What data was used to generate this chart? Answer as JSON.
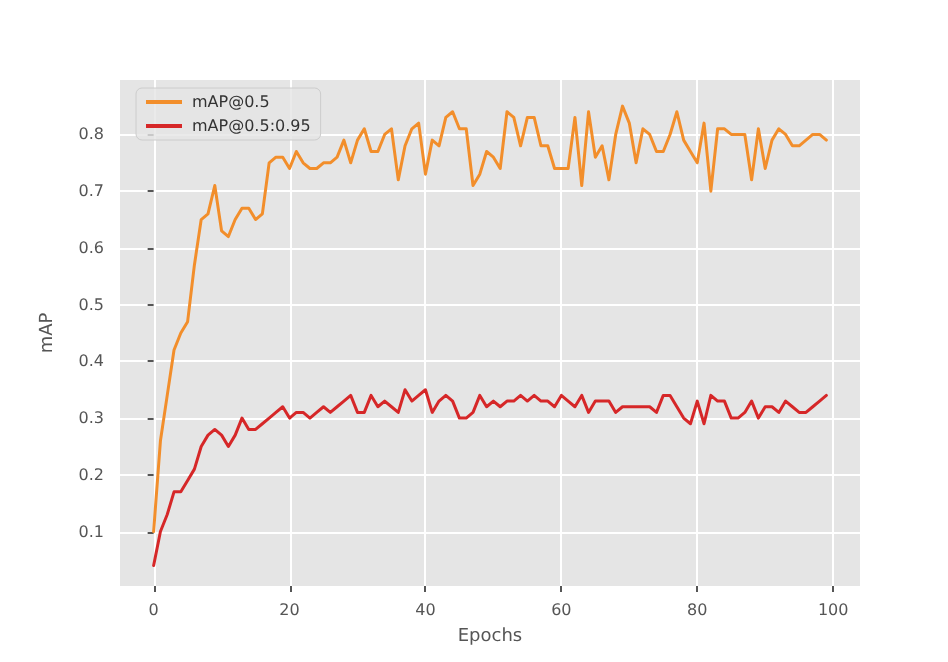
{
  "chart_data": {
    "type": "line",
    "xlabel": "Epochs",
    "ylabel": "mAP",
    "x": [
      0,
      1,
      2,
      3,
      4,
      5,
      6,
      7,
      8,
      9,
      10,
      11,
      12,
      13,
      14,
      15,
      16,
      17,
      18,
      19,
      20,
      21,
      22,
      23,
      24,
      25,
      26,
      27,
      28,
      29,
      30,
      31,
      32,
      33,
      34,
      35,
      36,
      37,
      38,
      39,
      40,
      41,
      42,
      43,
      44,
      45,
      46,
      47,
      48,
      49,
      50,
      51,
      52,
      53,
      54,
      55,
      56,
      57,
      58,
      59,
      60,
      61,
      62,
      63,
      64,
      65,
      66,
      67,
      68,
      69,
      70,
      71,
      72,
      73,
      74,
      75,
      76,
      77,
      78,
      79,
      80,
      81,
      82,
      83,
      84,
      85,
      86,
      87,
      88,
      89,
      90,
      91,
      92,
      93,
      94,
      95,
      96,
      97,
      98,
      99
    ],
    "series": [
      {
        "name": "mAP@0.5",
        "color": "#f28e2b",
        "values": [
          0.1,
          0.26,
          0.34,
          0.42,
          0.45,
          0.47,
          0.57,
          0.65,
          0.66,
          0.71,
          0.63,
          0.62,
          0.65,
          0.67,
          0.67,
          0.65,
          0.66,
          0.75,
          0.76,
          0.76,
          0.74,
          0.77,
          0.75,
          0.74,
          0.74,
          0.75,
          0.75,
          0.76,
          0.79,
          0.75,
          0.79,
          0.81,
          0.77,
          0.77,
          0.8,
          0.81,
          0.72,
          0.78,
          0.81,
          0.82,
          0.73,
          0.79,
          0.78,
          0.83,
          0.84,
          0.81,
          0.81,
          0.71,
          0.73,
          0.77,
          0.76,
          0.74,
          0.84,
          0.83,
          0.78,
          0.83,
          0.83,
          0.78,
          0.78,
          0.74,
          0.74,
          0.74,
          0.83,
          0.71,
          0.84,
          0.76,
          0.78,
          0.72,
          0.8,
          0.85,
          0.82,
          0.75,
          0.81,
          0.8,
          0.77,
          0.77,
          0.8,
          0.84,
          0.79,
          0.77,
          0.75,
          0.82,
          0.7,
          0.81,
          0.81,
          0.8,
          0.8,
          0.8,
          0.72,
          0.81,
          0.74,
          0.79,
          0.81,
          0.8,
          0.78,
          0.78,
          0.79,
          0.8,
          0.8,
          0.79
        ]
      },
      {
        "name": "mAP@0.5:0.95",
        "color": "#d62728",
        "values": [
          0.04,
          0.1,
          0.13,
          0.17,
          0.17,
          0.19,
          0.21,
          0.25,
          0.27,
          0.28,
          0.27,
          0.25,
          0.27,
          0.3,
          0.28,
          0.28,
          0.29,
          0.3,
          0.31,
          0.32,
          0.3,
          0.31,
          0.31,
          0.3,
          0.31,
          0.32,
          0.31,
          0.32,
          0.33,
          0.34,
          0.31,
          0.31,
          0.34,
          0.32,
          0.33,
          0.32,
          0.31,
          0.35,
          0.33,
          0.34,
          0.35,
          0.31,
          0.33,
          0.34,
          0.33,
          0.3,
          0.3,
          0.31,
          0.34,
          0.32,
          0.33,
          0.32,
          0.33,
          0.33,
          0.34,
          0.33,
          0.34,
          0.33,
          0.33,
          0.32,
          0.34,
          0.33,
          0.32,
          0.34,
          0.31,
          0.33,
          0.33,
          0.33,
          0.31,
          0.32,
          0.32,
          0.32,
          0.32,
          0.32,
          0.31,
          0.34,
          0.34,
          0.32,
          0.3,
          0.29,
          0.33,
          0.29,
          0.34,
          0.33,
          0.33,
          0.3,
          0.3,
          0.31,
          0.33,
          0.3,
          0.32,
          0.32,
          0.31,
          0.33,
          0.32,
          0.31,
          0.31,
          0.32,
          0.33,
          0.34
        ]
      }
    ],
    "xlim": [
      -4.95,
      103.95
    ],
    "xticks": [
      0,
      20,
      40,
      60,
      80,
      100
    ],
    "ylim": [
      0.004,
      0.896
    ],
    "yticks": [
      0.1,
      0.2,
      0.3,
      0.4,
      0.5,
      0.6,
      0.7,
      0.8
    ],
    "grid": true,
    "legend": "top left",
    "marker": "none",
    "line_style": "solid"
  }
}
